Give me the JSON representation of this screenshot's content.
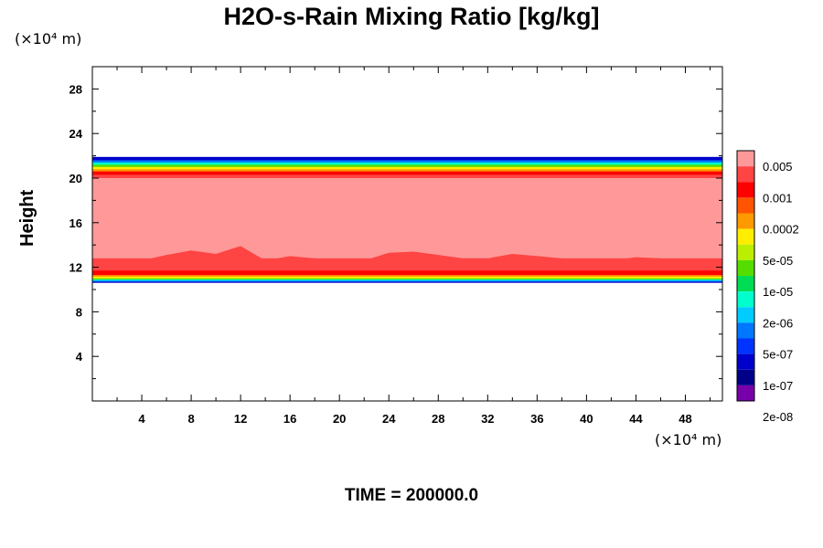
{
  "chart_data": {
    "type": "heatmap",
    "title": "H2O-s-Rain Mixing Ratio [kg/kg]",
    "ylabel": "Height",
    "xlabel": "",
    "x_unit_label": "(×10⁴ m)",
    "y_unit_label": "(×10⁴ m)",
    "xlim": [
      0,
      51
    ],
    "ylim": [
      0,
      30
    ],
    "x_ticks": [
      4,
      8,
      12,
      16,
      20,
      24,
      28,
      32,
      36,
      40,
      44,
      48
    ],
    "y_ticks": [
      4,
      8,
      12,
      16,
      20,
      24,
      28
    ],
    "footer": "TIME = 200000.0",
    "colorbar": {
      "colors": [
        "#ff9999",
        "#ff4444",
        "#ff0000",
        "#ff5500",
        "#ff9900",
        "#ffee00",
        "#bbee00",
        "#55dd00",
        "#00dd55",
        "#00ffcc",
        "#00ccff",
        "#0077ff",
        "#0033ff",
        "#0000cc",
        "#000088",
        "#7700aa"
      ],
      "labels": [
        "0.005",
        "0.001",
        "0.0002",
        "5e-05",
        "1e-05",
        "2e-06",
        "5e-07",
        "1e-07",
        "2e-08"
      ]
    },
    "bands": [
      {
        "color": "#0000cc",
        "bottom": 10.6,
        "top": 21.9
      },
      {
        "color": "#0077ff",
        "bottom": 10.7,
        "top": 21.6
      },
      {
        "color": "#00ffcc",
        "bottom": 10.8,
        "top": 21.4
      },
      {
        "color": "#55dd00",
        "bottom": 10.9,
        "top": 21.2
      },
      {
        "color": "#ffee00",
        "bottom": 11.0,
        "top": 21.0
      },
      {
        "color": "#ff9900",
        "bottom": 11.15,
        "top": 20.8
      },
      {
        "color": "#ff0000",
        "bottom": 11.3,
        "top": 20.6
      },
      {
        "color": "#ff4444",
        "bottom": 11.7,
        "top": 20.3
      },
      {
        "color": "#ff9999",
        "bottom": 12.8,
        "top": 20.0
      }
    ],
    "lower_blob_x": [
      0,
      2,
      4,
      6,
      8,
      10,
      12,
      14,
      16,
      18,
      20,
      22,
      24,
      26,
      28,
      30,
      32,
      34,
      36,
      38,
      40,
      42,
      44,
      46,
      48,
      51
    ],
    "lower_blob_y": [
      12.8,
      12.3,
      12.6,
      13.1,
      13.5,
      13.2,
      13.9,
      12.6,
      13.0,
      12.8,
      12.7,
      12.6,
      13.3,
      13.4,
      13.1,
      12.8,
      12.8,
      13.2,
      13.0,
      12.8,
      12.6,
      12.6,
      12.9,
      12.8,
      12.6,
      12.8
    ]
  }
}
